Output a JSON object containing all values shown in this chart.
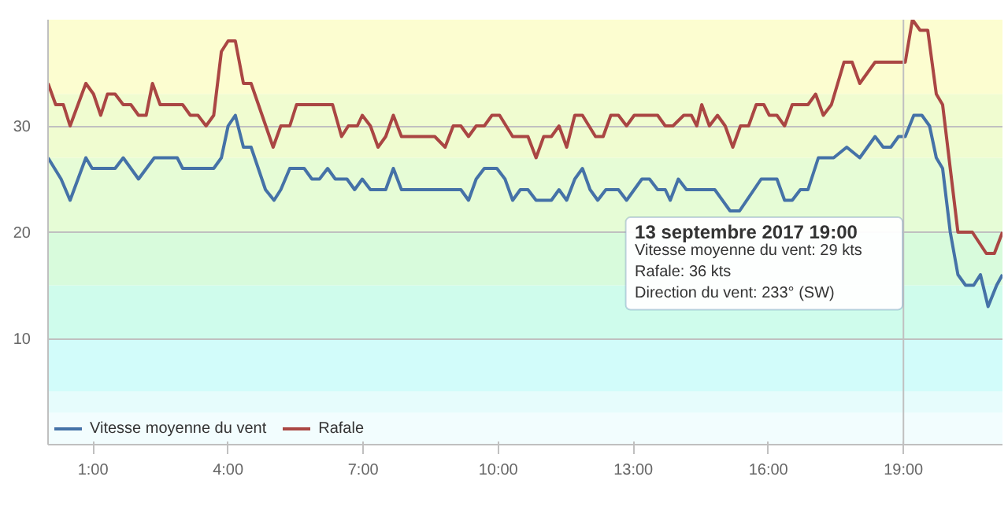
{
  "chart_data": {
    "type": "line",
    "xlim": [
      0,
      21.2
    ],
    "ylim": [
      0,
      40
    ],
    "xticks": [
      {
        "value": 1,
        "label": "1:00"
      },
      {
        "value": 4,
        "label": "4:00"
      },
      {
        "value": 7,
        "label": "7:00"
      },
      {
        "value": 10,
        "label": "10:00"
      },
      {
        "value": 13,
        "label": "13:00"
      },
      {
        "value": 16,
        "label": "16:00"
      },
      {
        "value": 19,
        "label": "19:00"
      }
    ],
    "yticks": [
      10,
      20,
      30
    ],
    "grid": "y",
    "legend": "bottom",
    "marker": "none",
    "line_style": "solid",
    "series": [
      {
        "name": "Vitesse moyenne du vent",
        "color": "#4572a7",
        "x": [
          0,
          0.29,
          0.49,
          0.84,
          0.98,
          1.49,
          1.67,
          2.01,
          2.36,
          2.87,
          2.99,
          3.68,
          3.85,
          4.0,
          4.16,
          4.34,
          4.51,
          4.83,
          5.02,
          5.17,
          5.37,
          5.69,
          5.86,
          6.03,
          6.21,
          6.38,
          6.64,
          6.81,
          6.98,
          7.16,
          7.5,
          7.67,
          7.85,
          9.17,
          9.34,
          9.51,
          9.69,
          9.97,
          10.15,
          10.32,
          10.49,
          10.66,
          10.84,
          11.18,
          11.35,
          11.52,
          11.7,
          11.87,
          12.04,
          12.21,
          12.39,
          12.67,
          12.85,
          13.02,
          13.19,
          13.36,
          13.54,
          13.71,
          13.82,
          14.0,
          14.18,
          14.81,
          15.15,
          15.36,
          15.84,
          16.19,
          16.36,
          16.53,
          16.71,
          16.88,
          17.11,
          17.45,
          17.74,
          18.03,
          18.37,
          18.55,
          18.72,
          18.89,
          19.04,
          19.23,
          19.41,
          19.58,
          19.73,
          19.87,
          20.04,
          20.21,
          20.38,
          20.56,
          20.71,
          20.88,
          21.07,
          21.2
        ],
        "values": [
          27,
          25,
          23,
          27,
          26,
          26,
          27,
          25,
          27,
          27,
          26,
          26,
          27,
          30,
          31,
          28,
          28,
          24,
          23,
          24,
          26,
          26,
          25,
          25,
          26,
          25,
          25,
          24,
          25,
          24,
          24,
          26,
          24,
          24,
          23,
          25,
          26,
          26,
          25,
          23,
          24,
          24,
          23,
          23,
          24,
          23,
          25,
          26,
          24,
          23,
          24,
          24,
          23,
          24,
          25,
          25,
          24,
          24,
          23,
          25,
          24,
          24,
          22,
          22,
          25,
          25,
          23,
          23,
          24,
          24,
          27,
          27,
          28,
          27,
          29,
          28,
          28,
          29,
          29,
          31,
          31,
          30,
          27,
          26,
          20,
          16,
          15,
          15,
          16,
          13,
          15,
          16
        ]
      },
      {
        "name": "Rafale",
        "color": "#aa4643",
        "x": [
          0,
          0.17,
          0.34,
          0.49,
          0.84,
          1.01,
          1.17,
          1.32,
          1.49,
          1.67,
          1.84,
          2.01,
          2.18,
          2.32,
          2.49,
          2.99,
          3.16,
          3.33,
          3.51,
          3.68,
          3.85,
          4.0,
          4.16,
          4.34,
          4.51,
          5.0,
          5.17,
          5.37,
          5.52,
          6.32,
          6.52,
          6.67,
          6.87,
          6.98,
          7.16,
          7.33,
          7.5,
          7.67,
          7.85,
          8.59,
          8.82,
          9.0,
          9.17,
          9.34,
          9.51,
          9.69,
          9.86,
          10.03,
          10.32,
          10.66,
          10.84,
          11.01,
          11.18,
          11.35,
          11.52,
          11.7,
          11.87,
          12.16,
          12.33,
          12.5,
          12.67,
          12.85,
          13.02,
          13.54,
          13.71,
          13.88,
          14.12,
          14.29,
          14.41,
          14.52,
          14.69,
          14.87,
          15.04,
          15.21,
          15.38,
          15.56,
          15.73,
          15.9,
          16.02,
          16.19,
          16.36,
          16.53,
          16.88,
          17.05,
          17.22,
          17.4,
          17.68,
          17.86,
          18.03,
          18.37,
          19.04,
          19.2,
          19.37,
          19.54,
          19.73,
          19.87,
          20.21,
          20.53,
          20.84,
          21.02,
          21.2
        ],
        "values": [
          34,
          32,
          32,
          30,
          34,
          33,
          31,
          33,
          33,
          32,
          32,
          31,
          31,
          34,
          32,
          32,
          31,
          31,
          30,
          31,
          37,
          38,
          38,
          34,
          34,
          28,
          30,
          30,
          32,
          32,
          29,
          30,
          30,
          31,
          30,
          28,
          29,
          31,
          29,
          29,
          28,
          30,
          30,
          29,
          30,
          30,
          31,
          31,
          29,
          29,
          27,
          29,
          29,
          30,
          28,
          31,
          31,
          29,
          29,
          31,
          31,
          30,
          31,
          31,
          30,
          30,
          31,
          31,
          30,
          32,
          30,
          31,
          30,
          28,
          30,
          30,
          32,
          32,
          31,
          31,
          30,
          32,
          32,
          33,
          31,
          32,
          36,
          36,
          34,
          36,
          36,
          40,
          39,
          39,
          33,
          32,
          20,
          20,
          18,
          18,
          20
        ]
      }
    ],
    "bands": [
      {
        "axis": "y",
        "from": 0,
        "to": 3,
        "color": "#f2fdfe"
      },
      {
        "axis": "y",
        "from": 3,
        "to": 5,
        "color": "#e6fcfc"
      },
      {
        "axis": "y",
        "from": 5,
        "to": 10,
        "color": "#d2fcfa"
      },
      {
        "axis": "y",
        "from": 10,
        "to": 15,
        "color": "#cffcec"
      },
      {
        "axis": "y",
        "from": 15,
        "to": 20,
        "color": "#d8fbdc"
      },
      {
        "axis": "y",
        "from": 20,
        "to": 27,
        "color": "#e6fcd6"
      },
      {
        "axis": "y",
        "from": 27,
        "to": 33,
        "color": "#f0fcd0"
      },
      {
        "axis": "y",
        "from": 33,
        "to": 40,
        "color": "#fcfdd0"
      }
    ],
    "ref_lines": [
      {
        "axis": "x",
        "value": 19,
        "color": "#c0c0c0"
      }
    ],
    "annotations": [
      "13 septembre 2017 19:00\nVitesse moyenne du vent: 29 kts\nRafale: 36 kts\nDirection du vent: 233° (SW)"
    ]
  }
}
